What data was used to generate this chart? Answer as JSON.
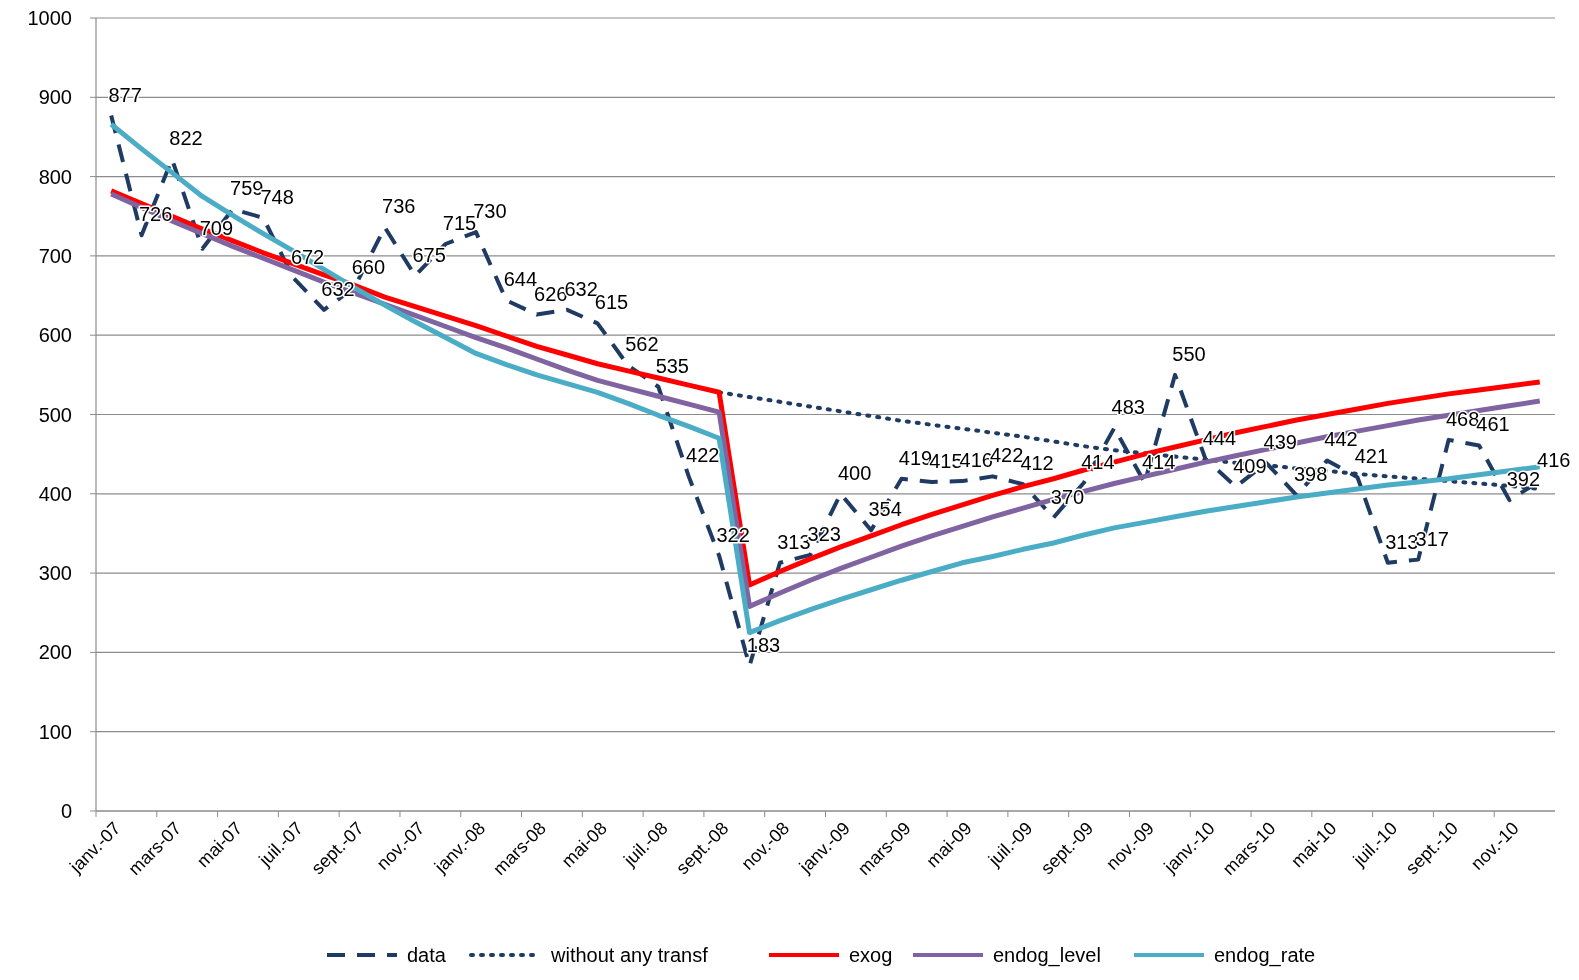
{
  "chart_data": {
    "type": "line",
    "categories": [
      "janv.-07",
      null,
      "mars-07",
      null,
      "mai-07",
      null,
      "juil.-07",
      null,
      "sept.-07",
      null,
      "nov.-07",
      null,
      "janv.-08",
      null,
      "mars-08",
      null,
      "mai-08",
      null,
      "juil.-08",
      null,
      "sept.-08",
      null,
      "nov.-08",
      null,
      "janv.-09",
      null,
      "mars-09",
      null,
      "mai-09",
      null,
      "juil.-09",
      null,
      "sept.-09",
      null,
      "nov.-09",
      null,
      "janv.-10",
      null,
      "mars-10",
      null,
      "mai-10",
      null,
      "juil.-10",
      null,
      "sept.-10",
      null,
      "nov.-10",
      null
    ],
    "ylim": [
      0,
      1000
    ],
    "yticks": [
      0,
      100,
      200,
      300,
      400,
      500,
      600,
      700,
      800,
      900,
      1000
    ],
    "grid": "y",
    "legend": "bottom",
    "marker": "none",
    "series": [
      {
        "name": "data",
        "color": "#1f3b63",
        "line_style": "dashed",
        "data_labels": true,
        "values": [
          877,
          726,
          822,
          709,
          759,
          748,
          672,
          632,
          660,
          736,
          675,
          715,
          730,
          644,
          626,
          632,
          615,
          562,
          535,
          422,
          322,
          183,
          313,
          323,
          400,
          354,
          419,
          415,
          416,
          422,
          412,
          370,
          414,
          483,
          414,
          550,
          444,
          409,
          439,
          398,
          442,
          421,
          313,
          317,
          468,
          461,
          392,
          416
        ]
      },
      {
        "name": "without any transf",
        "color": "#1f3b63",
        "line_style": "dotted",
        "values": [
          null,
          null,
          null,
          null,
          null,
          null,
          null,
          null,
          null,
          null,
          null,
          null,
          null,
          null,
          null,
          null,
          null,
          null,
          null,
          null,
          528,
          522,
          516,
          510,
          504,
          498,
          492,
          487,
          482,
          477,
          472,
          466,
          460,
          455,
          451,
          447,
          443,
          439,
          436,
          432,
          429,
          425,
          422,
          419,
          416,
          413,
          410,
          406
        ]
      },
      {
        "name": "exog",
        "color": "#ff0000",
        "line_style": "solid",
        "values": [
          782,
          766,
          750,
          734,
          719,
          704,
          690,
          676,
          663,
          648,
          636,
          624,
          612,
          599,
          586,
          575,
          564,
          555,
          546,
          537,
          528,
          285,
          302,
          318,
          333,
          347,
          361,
          374,
          386,
          398,
          409,
          419,
          430,
          440,
          450,
          459,
          468,
          477,
          485,
          493,
          500,
          507,
          514,
          520,
          526,
          531,
          536,
          541
        ]
      },
      {
        "name": "endog_level",
        "color": "#8064a2",
        "line_style": "solid",
        "values": [
          778,
          761,
          744,
          728,
          712,
          697,
          682,
          667,
          653,
          639,
          625,
          611,
          597,
          584,
          570,
          556,
          543,
          533,
          523,
          513,
          503,
          258,
          275,
          291,
          306,
          320,
          334,
          347,
          359,
          371,
          382,
          393,
          403,
          413,
          422,
          431,
          440,
          448,
          456,
          464,
          472,
          479,
          486,
          493,
          499,
          505,
          511,
          517
        ]
      },
      {
        "name": "endog_rate",
        "color": "#4bacc6",
        "line_style": "solid",
        "values": [
          866,
          835,
          805,
          775,
          751,
          728,
          706,
          683,
          660,
          638,
          617,
          597,
          577,
          563,
          550,
          539,
          528,
          514,
          499,
          485,
          470,
          225,
          240,
          254,
          267,
          279,
          291,
          302,
          313,
          321,
          330,
          338,
          348,
          357,
          364,
          371,
          378,
          384,
          390,
          396,
          401,
          406,
          411,
          415,
          419,
          424,
          429,
          434
        ]
      }
    ]
  }
}
